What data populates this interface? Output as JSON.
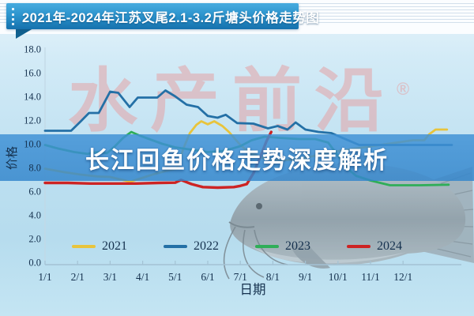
{
  "title_banner": {
    "text": "2021年-2024年江苏叉尾2.1-3.2斤塘头价格走势图"
  },
  "overlay_banner": {
    "text": "长江回鱼价格走势深度解析"
  },
  "watermark": {
    "text": "水产前沿",
    "registered_mark": "®"
  },
  "colors": {
    "ribbon_top": "#46abdf",
    "ribbon_bottom": "#1571ad",
    "banner_blue": "#3e8ed0",
    "watermark_pink": "#e2abaf",
    "axis_text": "#15314e",
    "axis_line": "#a3c2d4",
    "s2021": "#e8c43c",
    "s2022": "#2470a6",
    "s2023": "#2fae58",
    "s2024": "#cd2323"
  },
  "chart_data": {
    "type": "line",
    "title": "2021年-2024年江苏叉尾2.1-3.2斤塘头价格走势图",
    "xlabel": "日期",
    "ylabel": "价格",
    "ylim": [
      0,
      18
    ],
    "grid": false,
    "legend_position": "bottom",
    "y_ticks": [
      "18.0",
      "16.0",
      "14.0",
      "12.0",
      "10.0",
      "8.0",
      "6.0",
      "4.0",
      "2.0",
      "0.0"
    ],
    "y_tick_values": [
      18,
      16,
      14,
      12,
      10,
      8,
      6,
      4,
      2,
      0
    ],
    "x_ticks": [
      "1/1",
      "2/1",
      "3/1",
      "4/1",
      "5/1",
      "6/1",
      "7/1",
      "8/1",
      "9/1",
      "10/1",
      "11/1",
      "12/1"
    ],
    "x_tick_months": [
      1,
      2,
      3,
      4,
      5,
      6,
      7,
      8,
      9,
      10,
      11,
      12
    ],
    "series": [
      {
        "name": "2021",
        "color": "#e8c43c",
        "width": 2.8,
        "points": [
          [
            1,
            7.9
          ],
          [
            1.6,
            7.6
          ],
          [
            2.1,
            7.4
          ],
          [
            2.6,
            7.25
          ],
          [
            3.0,
            7.2
          ],
          [
            3.3,
            7.0
          ],
          [
            3.62,
            6.8
          ],
          [
            3.9,
            7.05
          ],
          [
            4.3,
            7.4
          ],
          [
            4.7,
            7.7
          ],
          [
            5.05,
            7.9
          ],
          [
            5.25,
            9.6
          ],
          [
            5.45,
            10.9
          ],
          [
            5.65,
            11.6
          ],
          [
            5.8,
            11.9
          ],
          [
            6.0,
            11.65
          ],
          [
            6.2,
            11.9
          ],
          [
            6.45,
            11.5
          ],
          [
            6.65,
            11.0
          ],
          [
            7.0,
            9.9
          ],
          [
            7.3,
            9.2
          ],
          [
            7.8,
            8.7
          ],
          [
            8.3,
            8.6
          ],
          [
            8.8,
            8.7
          ],
          [
            9.3,
            9.0
          ],
          [
            9.8,
            9.3
          ],
          [
            10.3,
            9.5
          ],
          [
            10.8,
            9.7
          ],
          [
            11.3,
            9.9
          ],
          [
            11.8,
            10.1
          ],
          [
            12.3,
            10.3
          ],
          [
            12.65,
            10.3
          ],
          [
            12.8,
            10.8
          ],
          [
            13.0,
            11.2
          ],
          [
            13.35,
            11.2
          ]
        ]
      },
      {
        "name": "2022",
        "color": "#2470a6",
        "width": 2.8,
        "points": [
          [
            1,
            11.1
          ],
          [
            1.8,
            11.1
          ],
          [
            2.1,
            11.9
          ],
          [
            2.35,
            12.6
          ],
          [
            2.65,
            12.6
          ],
          [
            3.0,
            14.4
          ],
          [
            3.25,
            14.3
          ],
          [
            3.6,
            13.1
          ],
          [
            3.85,
            13.9
          ],
          [
            4.45,
            13.9
          ],
          [
            4.7,
            14.5
          ],
          [
            5.0,
            14.0
          ],
          [
            5.35,
            13.3
          ],
          [
            5.7,
            13.1
          ],
          [
            6.0,
            12.35
          ],
          [
            6.3,
            12.2
          ],
          [
            6.55,
            12.45
          ],
          [
            6.9,
            11.75
          ],
          [
            7.4,
            11.7
          ],
          [
            7.85,
            11.3
          ],
          [
            8.15,
            11.5
          ],
          [
            8.45,
            11.2
          ],
          [
            8.7,
            11.8
          ],
          [
            9.0,
            11.2
          ],
          [
            9.4,
            11.0
          ],
          [
            9.8,
            10.9
          ],
          [
            10.1,
            10.55
          ],
          [
            10.65,
            9.9
          ],
          [
            13.5,
            9.9
          ]
        ]
      },
      {
        "name": "2023",
        "color": "#2fae58",
        "width": 2.8,
        "points": [
          [
            1,
            9.9
          ],
          [
            1.4,
            9.6
          ],
          [
            1.9,
            9.3
          ],
          [
            2.3,
            9.15
          ],
          [
            2.6,
            9.3
          ],
          [
            2.9,
            9.2
          ],
          [
            3.15,
            9.8
          ],
          [
            3.4,
            10.5
          ],
          [
            3.65,
            11.0
          ],
          [
            3.9,
            10.7
          ],
          [
            4.2,
            10.4
          ],
          [
            4.6,
            10.0
          ],
          [
            5.0,
            9.7
          ],
          [
            5.5,
            9.5
          ],
          [
            6.0,
            9.3
          ],
          [
            6.5,
            9.4
          ],
          [
            7.0,
            9.8
          ],
          [
            7.35,
            10.3
          ],
          [
            7.75,
            10.6
          ],
          [
            8.2,
            10.5
          ],
          [
            8.8,
            10.4
          ],
          [
            9.3,
            10.4
          ],
          [
            9.7,
            10.1
          ],
          [
            10.0,
            9.0
          ],
          [
            10.3,
            7.9
          ],
          [
            10.55,
            7.3
          ],
          [
            11.0,
            6.9
          ],
          [
            11.6,
            6.5
          ],
          [
            12.5,
            6.5
          ],
          [
            13.4,
            6.55
          ]
        ]
      },
      {
        "name": "2024",
        "color": "#cd2323",
        "width": 3.4,
        "points": [
          [
            1,
            6.7
          ],
          [
            1.7,
            6.7
          ],
          [
            2.4,
            6.65
          ],
          [
            3.1,
            6.65
          ],
          [
            3.8,
            6.65
          ],
          [
            4.5,
            6.7
          ],
          [
            5.0,
            6.72
          ],
          [
            5.18,
            6.95
          ],
          [
            5.5,
            6.6
          ],
          [
            5.85,
            6.35
          ],
          [
            6.3,
            6.3
          ],
          [
            6.8,
            6.35
          ],
          [
            7.0,
            6.45
          ],
          [
            7.2,
            6.6
          ],
          [
            7.4,
            7.5
          ],
          [
            7.6,
            8.8
          ],
          [
            7.8,
            10.2
          ],
          [
            7.95,
            11.0
          ]
        ]
      }
    ]
  }
}
